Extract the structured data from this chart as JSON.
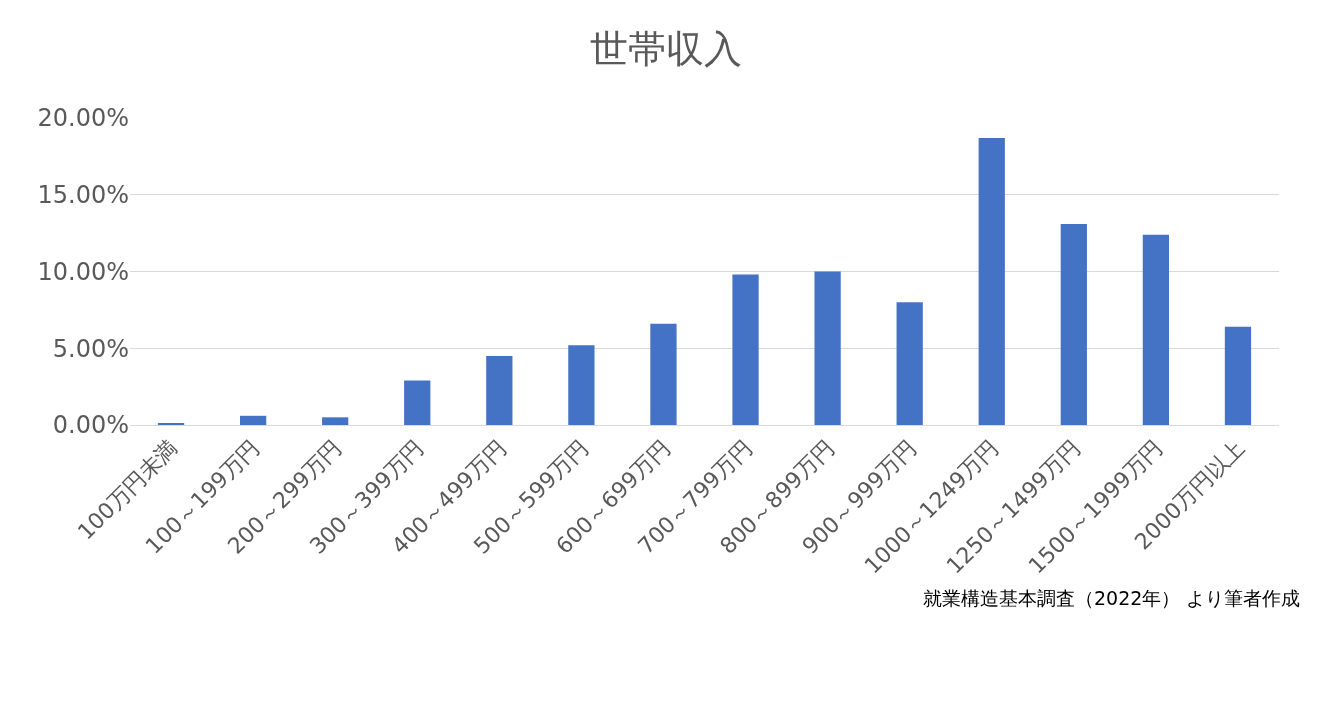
{
  "chart_data": {
    "type": "bar",
    "title": "世帯収入",
    "categories": [
      "100万円未満",
      "100～199万円",
      "200～299万円",
      "300～399万円",
      "400～499万円",
      "500～599万円",
      "600～699万円",
      "700～799万円",
      "800～899万円",
      "900～999万円",
      "1000～1249万円",
      "1250～1499万円",
      "1500～1999万円",
      "2000万円以上"
    ],
    "values": [
      0.1,
      0.6,
      0.5,
      2.9,
      4.5,
      5.2,
      6.6,
      9.8,
      10.0,
      8.0,
      18.7,
      13.1,
      12.4,
      6.4
    ],
    "color": "#4472c4",
    "ylim": [
      0,
      20
    ],
    "yticks": [
      {
        "value": 0,
        "label": "0.00%"
      },
      {
        "value": 5,
        "label": "5.00%"
      },
      {
        "value": 10,
        "label": "10.00%"
      },
      {
        "value": 15,
        "label": "15.00%"
      },
      {
        "value": 20,
        "label": "20.00%"
      }
    ],
    "grid": "y",
    "legend": false,
    "annotations": [
      "就業構造基本調査（2022年） より筆者作成"
    ]
  }
}
